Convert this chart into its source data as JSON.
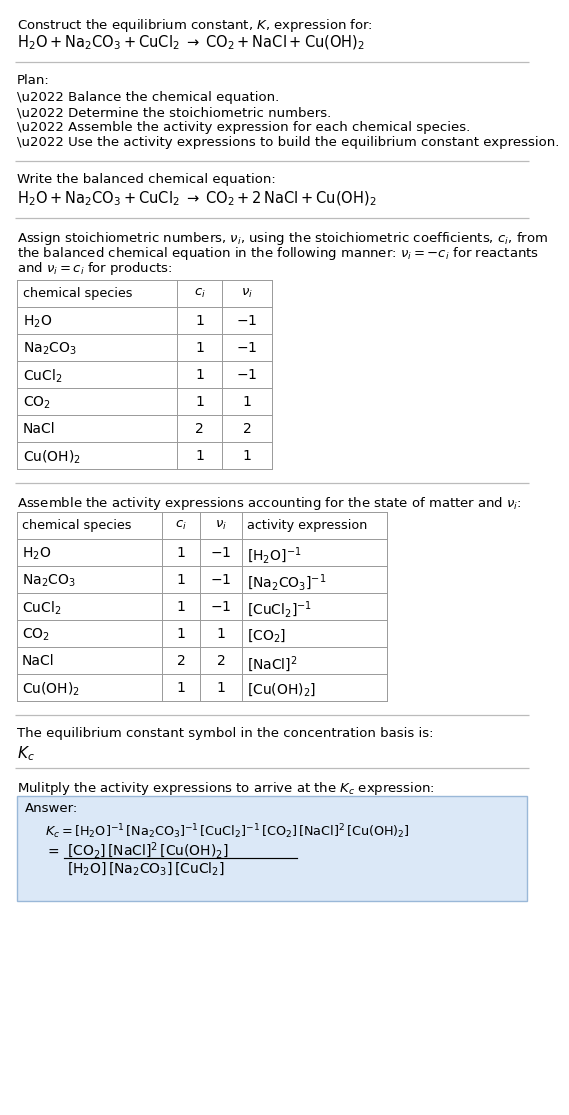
{
  "bg_color": "#ffffff",
  "title_line1": "Construct the equilibrium constant, $K$, expression for:",
  "title_line2": "$\\mathrm{H_2O + Na_2CO_3 + CuCl_2 \\;\\rightarrow\\; CO_2 + NaCl + Cu(OH)_2}$",
  "plan_header": "Plan:",
  "plan_items": [
    "\\u2022 Balance the chemical equation.",
    "\\u2022 Determine the stoichiometric numbers.",
    "\\u2022 Assemble the activity expression for each chemical species.",
    "\\u2022 Use the activity expressions to build the equilibrium constant expression."
  ],
  "balanced_header": "Write the balanced chemical equation:",
  "balanced_eq": "$\\mathrm{H_2O + Na_2CO_3 + CuCl_2 \\;\\rightarrow\\; CO_2 + 2\\,NaCl + Cu(OH)_2}$",
  "stoich_lines": [
    "Assign stoichiometric numbers, $\\nu_i$, using the stoichiometric coefficients, $c_i$, from",
    "the balanced chemical equation in the following manner: $\\nu_i = -c_i$ for reactants",
    "and $\\nu_i = c_i$ for products:"
  ],
  "table1_headers": [
    "chemical species",
    "$c_i$",
    "$\\nu_i$"
  ],
  "table1_rows": [
    [
      "$\\mathrm{H_2O}$",
      "1",
      "$-1$"
    ],
    [
      "$\\mathrm{Na_2CO_3}$",
      "1",
      "$-1$"
    ],
    [
      "$\\mathrm{CuCl_2}$",
      "1",
      "$-1$"
    ],
    [
      "$\\mathrm{CO_2}$",
      "1",
      "$1$"
    ],
    [
      "NaCl",
      "2",
      "$2$"
    ],
    [
      "$\\mathrm{Cu(OH)_2}$",
      "1",
      "$1$"
    ]
  ],
  "activity_header": "Assemble the activity expressions accounting for the state of matter and $\\nu_i$:",
  "table2_headers": [
    "chemical species",
    "$c_i$",
    "$\\nu_i$",
    "activity expression"
  ],
  "table2_rows": [
    [
      "$\\mathrm{H_2O}$",
      "1",
      "$-1$",
      "$[\\mathrm{H_2O}]^{-1}$"
    ],
    [
      "$\\mathrm{Na_2CO_3}$",
      "1",
      "$-1$",
      "$[\\mathrm{Na_2CO_3}]^{-1}$"
    ],
    [
      "$\\mathrm{CuCl_2}$",
      "1",
      "$-1$",
      "$[\\mathrm{CuCl_2}]^{-1}$"
    ],
    [
      "$\\mathrm{CO_2}$",
      "1",
      "$1$",
      "$[\\mathrm{CO_2}]$"
    ],
    [
      "NaCl",
      "2",
      "$2$",
      "$[\\mathrm{NaCl}]^2$"
    ],
    [
      "$\\mathrm{Cu(OH)_2}$",
      "1",
      "$1$",
      "$[\\mathrm{Cu(OH)_2}]$"
    ]
  ],
  "kc_header": "The equilibrium constant symbol in the concentration basis is:",
  "kc_symbol": "$K_c$",
  "multiply_header": "Mulitply the activity expressions to arrive at the $K_c$ expression:",
  "answer_label": "Answer:",
  "answer_line1": "$K_c = [\\mathrm{H_2O}]^{-1}\\,[\\mathrm{Na_2CO_3}]^{-1}\\,[\\mathrm{CuCl_2}]^{-1}\\,[\\mathrm{CO_2}]\\,[\\mathrm{NaCl}]^2\\,[\\mathrm{Cu(OH)_2}]$",
  "answer_eq_sign": "$=$",
  "answer_numer": "$[\\mathrm{CO_2}]\\,[\\mathrm{NaCl}]^2\\,[\\mathrm{Cu(OH)_2}]$",
  "answer_denom": "$[\\mathrm{H_2O}]\\,[\\mathrm{Na_2CO_3}]\\,[\\mathrm{CuCl_2}]$",
  "answer_box_color": "#dbe8f7",
  "answer_box_edge": "#9ab8d8",
  "table_line_color": "#999999"
}
